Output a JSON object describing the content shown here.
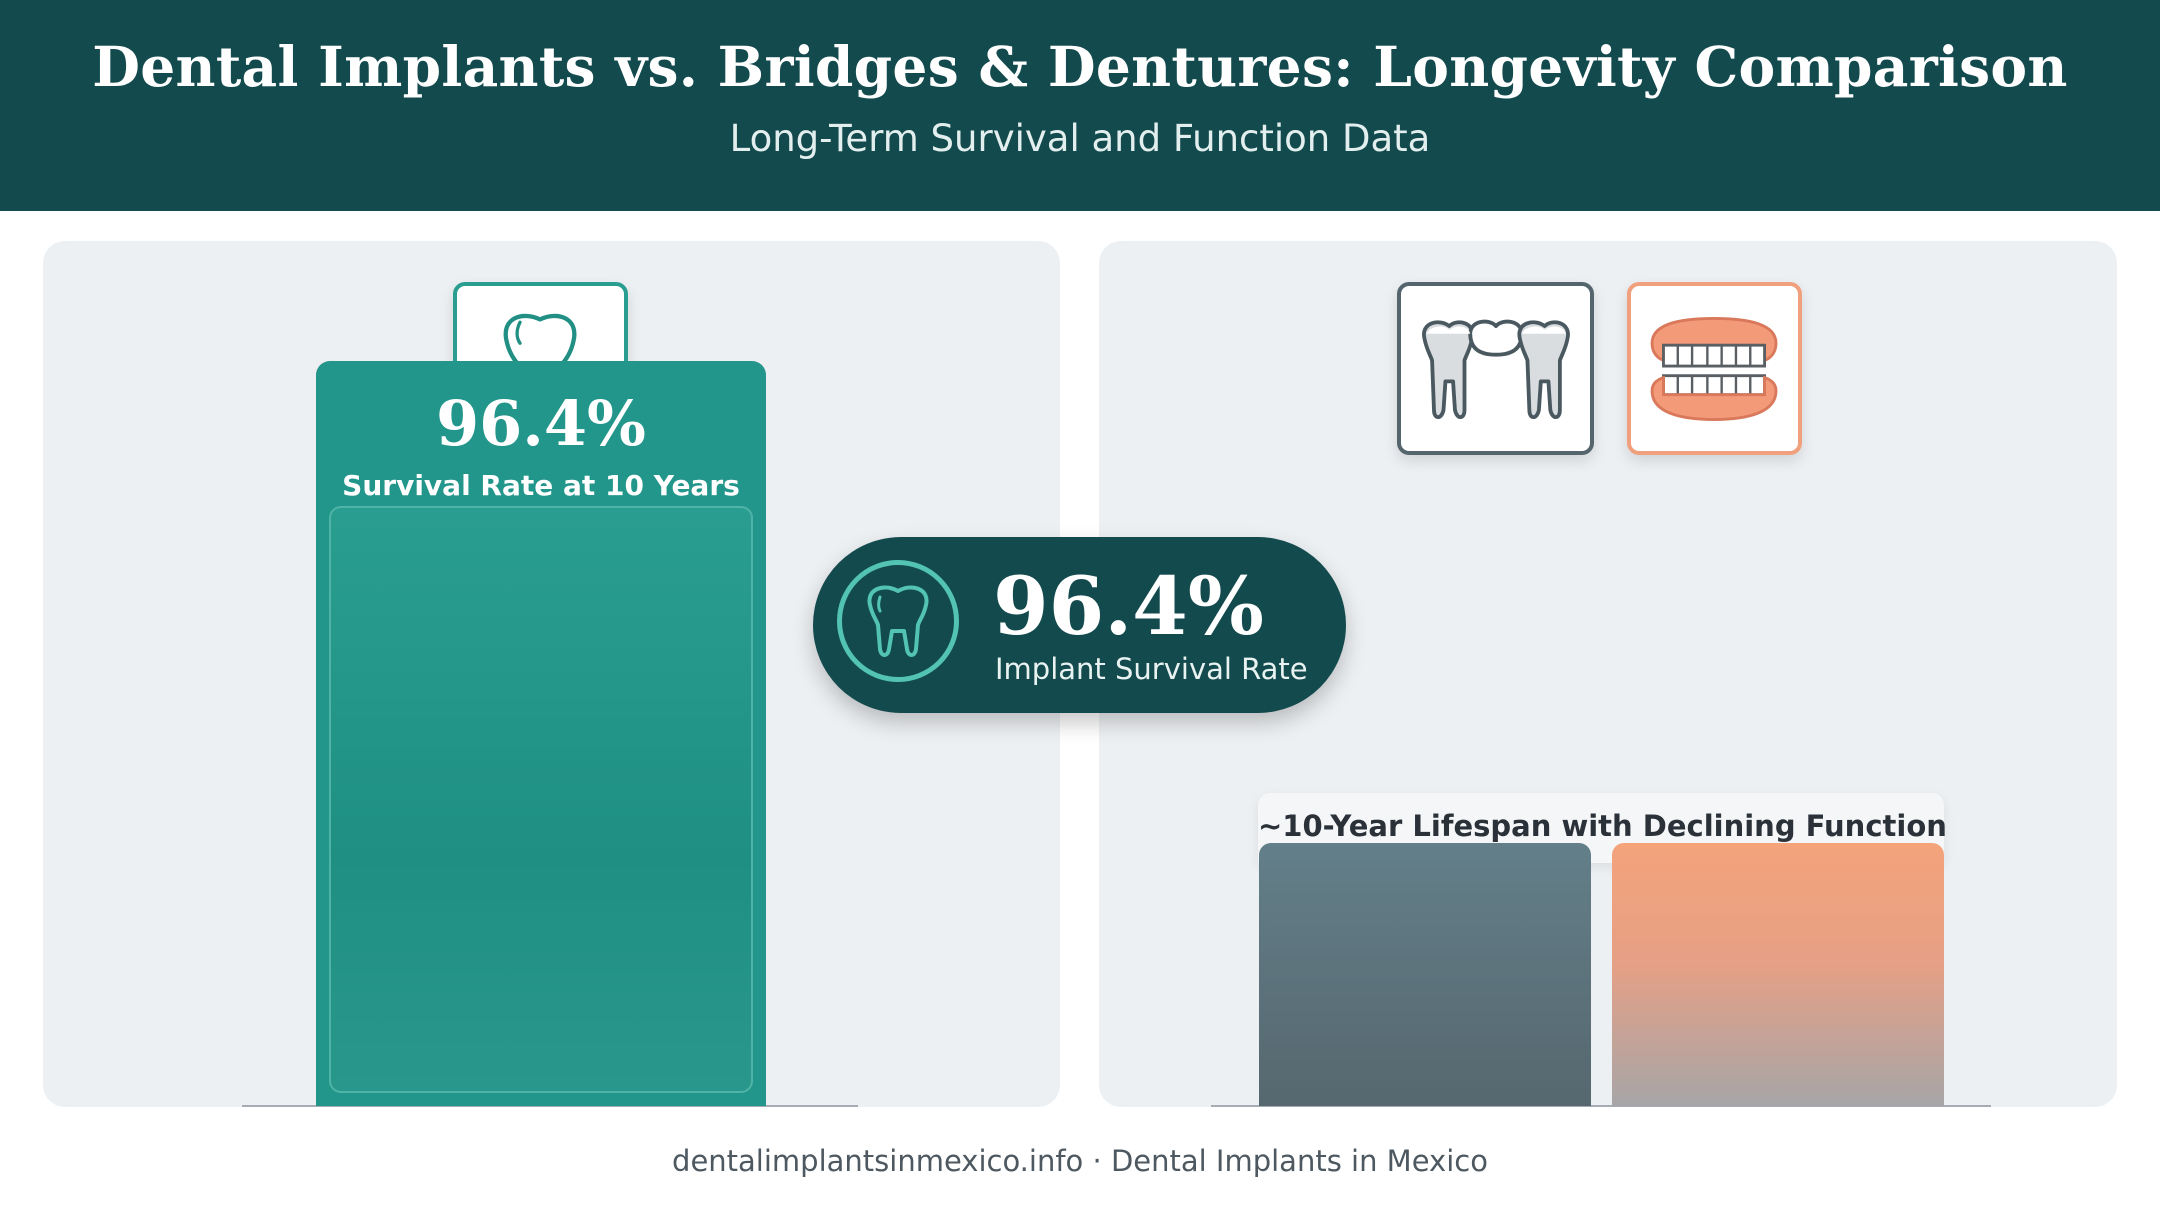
{
  "header": {
    "title": "Dental Implants vs. Bridges & Dentures: Longevity Comparison",
    "subtitle": "Long-Term Survival and Function Data"
  },
  "chart_data": {
    "type": "bar",
    "title": "Dental Implants vs. Bridges & Dentures: Longevity Comparison",
    "subtitle": "Long-Term Survival and Function Data",
    "series": [
      {
        "name": "Dental Implants",
        "icon": "implant-icon",
        "value": 96.4,
        "value_label": "96.4%",
        "caption": "Survival Rate at 10 Years",
        "color": "#22968a"
      },
      {
        "name": "Bridges",
        "icon": "bridge-icon",
        "value": 34,
        "color": "#5a6f78"
      },
      {
        "name": "Dentures",
        "icon": "denture-icon",
        "value": 34,
        "color": "#f4a37a"
      }
    ],
    "group_label": "~10-Year Lifespan with Declining Function",
    "callout": {
      "value": "96.4%",
      "label": "Implant Survival Rate",
      "icon": "tooth-icon"
    },
    "ylim": [
      0,
      100
    ],
    "grid": false,
    "legend": "none"
  },
  "footer": {
    "text": "dentalimplantsinmexico.info · Dental Implants in Mexico"
  },
  "colors": {
    "header_bg": "#134a4d",
    "panel_bg": "#edf0f3",
    "implant_teal": "#22968a",
    "bridge_slate": "#5a6f78",
    "denture_peach": "#f4a37a",
    "accent_ring": "#52c4b1"
  }
}
